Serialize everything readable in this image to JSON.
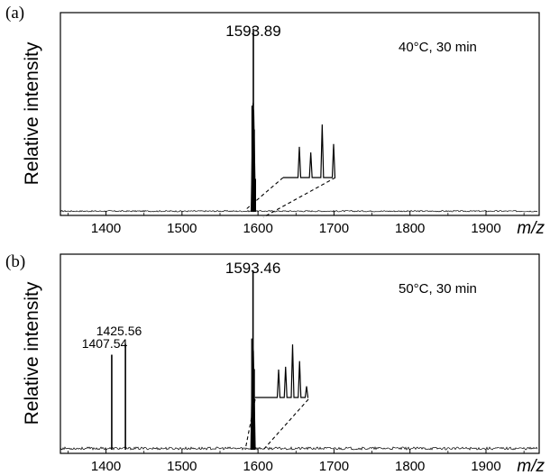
{
  "chart_data": [
    {
      "panel": "(a)",
      "type": "line",
      "ylabel": "Relative intensity",
      "xlabel": "m/z",
      "xlim": [
        1340,
        1970
      ],
      "xticks": [
        1400,
        1500,
        1600,
        1700,
        1800,
        1900
      ],
      "annotation_text": "40°C, 30 min",
      "peaks": [
        {
          "x": 1593.89,
          "y": 1.0,
          "label": "1593.89"
        },
        {
          "x": 1592.3,
          "y": 0.58,
          "label": ""
        },
        {
          "x": 1595.0,
          "y": 0.45,
          "label": ""
        },
        {
          "x": 1596.5,
          "y": 0.18,
          "label": ""
        }
      ],
      "inset_isotope_peaks": [
        0.55,
        0.45,
        0.95,
        0.6
      ]
    },
    {
      "panel": "(b)",
      "type": "line",
      "ylabel": "Relative intensity",
      "xlabel": "m/z",
      "xlim": [
        1340,
        1970
      ],
      "xticks": [
        1400,
        1500,
        1600,
        1700,
        1800,
        1900
      ],
      "annotation_text": "50°C, 30 min",
      "peaks": [
        {
          "x": 1407.54,
          "y": 0.53,
          "label": "1407.54"
        },
        {
          "x": 1425.56,
          "y": 0.59,
          "label": "1425.56"
        },
        {
          "x": 1593.46,
          "y": 1.0,
          "label": "1593.46"
        },
        {
          "x": 1592.0,
          "y": 0.62,
          "label": ""
        },
        {
          "x": 1595.0,
          "y": 0.45,
          "label": ""
        }
      ],
      "inset_isotope_peaks": [
        0.5,
        0.55,
        0.95,
        0.65,
        0.2
      ]
    }
  ]
}
